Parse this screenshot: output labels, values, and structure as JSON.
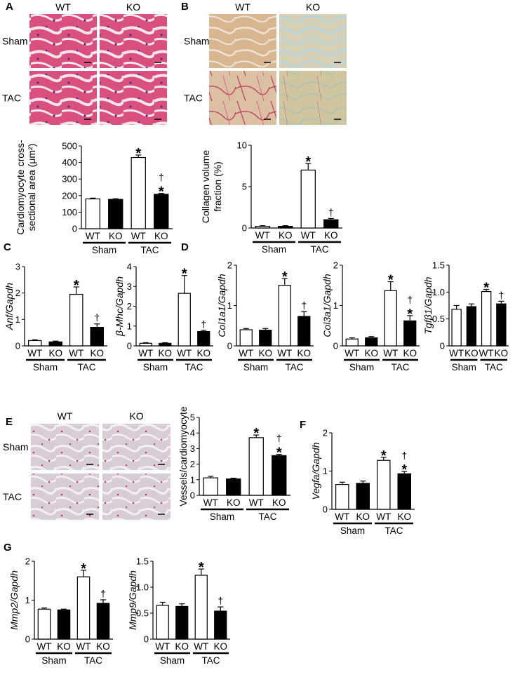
{
  "figure": {
    "panels": [
      {
        "letter": "A",
        "id": "A",
        "micrograph": "he",
        "cols": [
          "WT",
          "KO"
        ],
        "rows": [
          "Sham",
          "TAC"
        ]
      },
      {
        "letter": "B",
        "id": "B",
        "micrograph": "picrosirius",
        "cols": [
          "WT",
          "KO"
        ],
        "rows": [
          "Sham",
          "TAC"
        ]
      },
      {
        "letter": "C",
        "id": "C"
      },
      {
        "letter": "D",
        "id": "D"
      },
      {
        "letter": "E",
        "id": "E",
        "micrograph": "vessel",
        "cols": [
          "WT",
          "KO"
        ],
        "rows": [
          "Sham",
          "TAC"
        ]
      },
      {
        "letter": "F",
        "id": "F"
      },
      {
        "letter": "G",
        "id": "G"
      }
    ],
    "colors": {
      "wt_bar": "#ffffff",
      "ko_bar": "#000000",
      "stroke": "#000000"
    }
  },
  "chart_data": [
    {
      "id": "A-cross-sectional-area",
      "type": "bar",
      "ylabel": [
        "Cardiomyocyte cross-",
        "sectional area (μm²)"
      ],
      "ylim": [
        0,
        500
      ],
      "yticks": [
        "0",
        "100",
        "200",
        "300",
        "400",
        "500"
      ],
      "categories": [
        "WT",
        "KO",
        "WT",
        "KO"
      ],
      "groups": [
        "Sham",
        "TAC"
      ],
      "values": [
        180,
        177,
        430,
        208
      ],
      "errors": [
        5,
        4,
        15,
        5
      ],
      "marks": [
        "",
        "",
        "*",
        "†\n*"
      ]
    },
    {
      "id": "B-collagen-volume",
      "type": "bar",
      "ylabel": [
        "Collagen volume",
        "fraction (%)"
      ],
      "ylim": [
        0,
        10
      ],
      "yticks": [
        "0",
        "5",
        "10"
      ],
      "categories": [
        "WT",
        "KO",
        "WT",
        "KO"
      ],
      "groups": [
        "Sham",
        "TAC"
      ],
      "values": [
        0.2,
        0.2,
        7.0,
        1.0
      ],
      "errors": [
        0.08,
        0.08,
        0.8,
        0.15
      ],
      "marks": [
        "",
        "",
        "*",
        "†"
      ]
    },
    {
      "id": "C-anf",
      "type": "bar",
      "ylabel": [
        "Anf/Gapdh"
      ],
      "italic": true,
      "ylim": [
        0,
        3
      ],
      "yticks": [
        "0",
        "1",
        "2",
        "3"
      ],
      "categories": [
        "WT",
        "KO",
        "WT",
        "KO"
      ],
      "groups": [
        "Sham",
        "TAC"
      ],
      "values": [
        0.2,
        0.15,
        1.95,
        0.7
      ],
      "errors": [
        0.03,
        0.03,
        0.28,
        0.13
      ],
      "marks": [
        "",
        "",
        "*",
        "†"
      ]
    },
    {
      "id": "C-bmhc",
      "type": "bar",
      "ylabel": [
        "β-Mhc/Gapdh"
      ],
      "italic": true,
      "ylim": [
        0,
        4
      ],
      "yticks": [
        "0",
        "1",
        "2",
        "3",
        "4"
      ],
      "categories": [
        "WT",
        "KO",
        "WT",
        "KO"
      ],
      "groups": [
        "Sham",
        "TAC"
      ],
      "values": [
        0.13,
        0.13,
        2.65,
        0.72
      ],
      "errors": [
        0.03,
        0.03,
        0.9,
        0.06
      ],
      "marks": [
        "",
        "",
        "*",
        "†"
      ]
    },
    {
      "id": "D-col1a1",
      "type": "bar",
      "ylabel": [
        "Col1a1/Gapdh"
      ],
      "italic": true,
      "ylim": [
        0,
        2
      ],
      "yticks": [
        "0",
        "1",
        "2"
      ],
      "categories": [
        "WT",
        "KO",
        "WT",
        "KO"
      ],
      "groups": [
        "Sham",
        "TAC"
      ],
      "values": [
        0.4,
        0.39,
        1.5,
        0.73
      ],
      "errors": [
        0.03,
        0.04,
        0.17,
        0.12
      ],
      "marks": [
        "",
        "",
        "*",
        "†"
      ]
    },
    {
      "id": "D-col3a1",
      "type": "bar",
      "ylabel": [
        "Col3a1/Gapdh"
      ],
      "italic": true,
      "ylim": [
        0,
        2
      ],
      "yticks": [
        "0",
        "1",
        "2"
      ],
      "categories": [
        "WT",
        "KO",
        "WT",
        "KO"
      ],
      "groups": [
        "Sham",
        "TAC"
      ],
      "values": [
        0.17,
        0.2,
        1.37,
        0.62
      ],
      "errors": [
        0.03,
        0.03,
        0.22,
        0.13
      ],
      "marks": [
        "",
        "",
        "*",
        "†\n*"
      ]
    },
    {
      "id": "D-tgfb1",
      "type": "bar",
      "ylabel": [
        "Tgfβ1/Gapdh"
      ],
      "italic": true,
      "ylim": [
        0,
        1.5
      ],
      "yticks": [
        "0",
        "0.5",
        "1.0",
        "1.5"
      ],
      "categories": [
        "WT",
        "KO",
        "WT",
        "KO"
      ],
      "groups": [
        "Sham",
        "TAC"
      ],
      "values": [
        0.68,
        0.73,
        1.01,
        0.78
      ],
      "errors": [
        0.07,
        0.05,
        0.04,
        0.05
      ],
      "marks": [
        "",
        "",
        "*",
        "†"
      ]
    },
    {
      "id": "E-vessels",
      "type": "bar",
      "ylabel": [
        "Vessels/cardiomyocyte"
      ],
      "ylim": [
        0,
        5
      ],
      "yticks": [
        "0",
        "1",
        "2",
        "3",
        "4",
        "5"
      ],
      "categories": [
        "WT",
        "KO",
        "WT",
        "KO"
      ],
      "groups": [
        "Sham",
        "TAC"
      ],
      "values": [
        1.12,
        1.05,
        3.7,
        2.55
      ],
      "errors": [
        0.1,
        0.05,
        0.17,
        0.08
      ],
      "marks": [
        "",
        "",
        "*",
        "†\n*"
      ]
    },
    {
      "id": "F-vegfa",
      "type": "bar",
      "ylabel": [
        "Vegfa/Gapdh"
      ],
      "italic": true,
      "ylim": [
        0,
        2
      ],
      "yticks": [
        "0",
        "1",
        "2"
      ],
      "categories": [
        "WT",
        "KO",
        "WT",
        "KO"
      ],
      "groups": [
        "Sham",
        "TAC"
      ],
      "values": [
        0.65,
        0.68,
        1.28,
        0.93
      ],
      "errors": [
        0.06,
        0.06,
        0.08,
        0.06
      ],
      "marks": [
        "",
        "",
        "*",
        "†\n*"
      ]
    },
    {
      "id": "G-mmp2",
      "type": "bar",
      "ylabel": [
        "Mmp2/Gapdh"
      ],
      "italic": true,
      "ylim": [
        0,
        2
      ],
      "yticks": [
        "0",
        "1",
        "2"
      ],
      "categories": [
        "WT",
        "KO",
        "WT",
        "KO"
      ],
      "groups": [
        "Sham",
        "TAC"
      ],
      "values": [
        0.77,
        0.75,
        1.6,
        0.92
      ],
      "errors": [
        0.03,
        0.02,
        0.17,
        0.09
      ],
      "marks": [
        "",
        "",
        "*",
        "†"
      ]
    },
    {
      "id": "G-mmp9",
      "type": "bar",
      "ylabel": [
        "Mmp9/Gapdh"
      ],
      "italic": true,
      "ylim": [
        0,
        1.5
      ],
      "yticks": [
        "0",
        "0.5",
        "1.0",
        "1.5"
      ],
      "categories": [
        "WT",
        "KO",
        "WT",
        "KO"
      ],
      "groups": [
        "Sham",
        "TAC"
      ],
      "values": [
        0.65,
        0.63,
        1.23,
        0.54
      ],
      "errors": [
        0.06,
        0.05,
        0.12,
        0.08
      ],
      "marks": [
        "",
        "",
        "*",
        "†"
      ]
    }
  ]
}
